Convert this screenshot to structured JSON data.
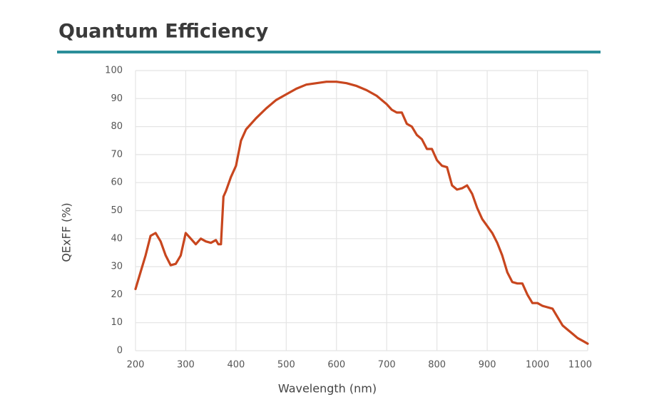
{
  "chart_data": {
    "type": "line",
    "title": "Quantum Efficiency",
    "xlabel": "Wavelength (nm)",
    "ylabel": "QExFF (%)",
    "color": "#c8461e",
    "grid": true,
    "xlim": [
      200,
      1100
    ],
    "ylim": [
      0,
      100
    ],
    "xticks": [
      200,
      300,
      400,
      500,
      600,
      700,
      800,
      900,
      1000,
      1100
    ],
    "yticks": [
      0,
      10,
      20,
      30,
      40,
      50,
      60,
      70,
      80,
      90,
      100
    ],
    "x": [
      200,
      210,
      220,
      230,
      240,
      250,
      260,
      270,
      280,
      290,
      300,
      310,
      320,
      330,
      340,
      350,
      360,
      365,
      370,
      375,
      380,
      390,
      400,
      410,
      420,
      440,
      460,
      480,
      500,
      520,
      540,
      560,
      580,
      600,
      620,
      640,
      660,
      680,
      700,
      710,
      720,
      730,
      740,
      750,
      760,
      770,
      780,
      790,
      800,
      810,
      820,
      830,
      840,
      850,
      860,
      870,
      880,
      890,
      900,
      910,
      920,
      930,
      940,
      950,
      960,
      970,
      980,
      990,
      1000,
      1010,
      1030,
      1040,
      1050,
      1060,
      1070,
      1080,
      1090,
      1100
    ],
    "values": [
      22,
      28,
      34,
      41,
      42,
      39,
      34,
      30.5,
      31,
      34,
      42,
      40,
      38,
      40,
      39,
      38.5,
      39.5,
      38,
      38,
      55,
      57,
      62,
      66,
      75,
      79,
      83,
      86.5,
      89.5,
      91.5,
      93.5,
      95,
      95.5,
      96,
      96,
      95.5,
      94.5,
      93,
      91,
      88,
      86,
      85,
      85,
      81,
      80,
      77,
      75.5,
      72,
      72,
      68,
      66,
      65.5,
      59,
      57.5,
      58,
      59,
      56,
      51,
      47,
      44.5,
      42,
      38.5,
      34,
      28,
      24.5,
      24,
      24,
      20,
      17,
      17,
      16,
      15,
      12,
      9,
      7.5,
      6,
      4.5,
      3.5,
      2.5
    ]
  }
}
